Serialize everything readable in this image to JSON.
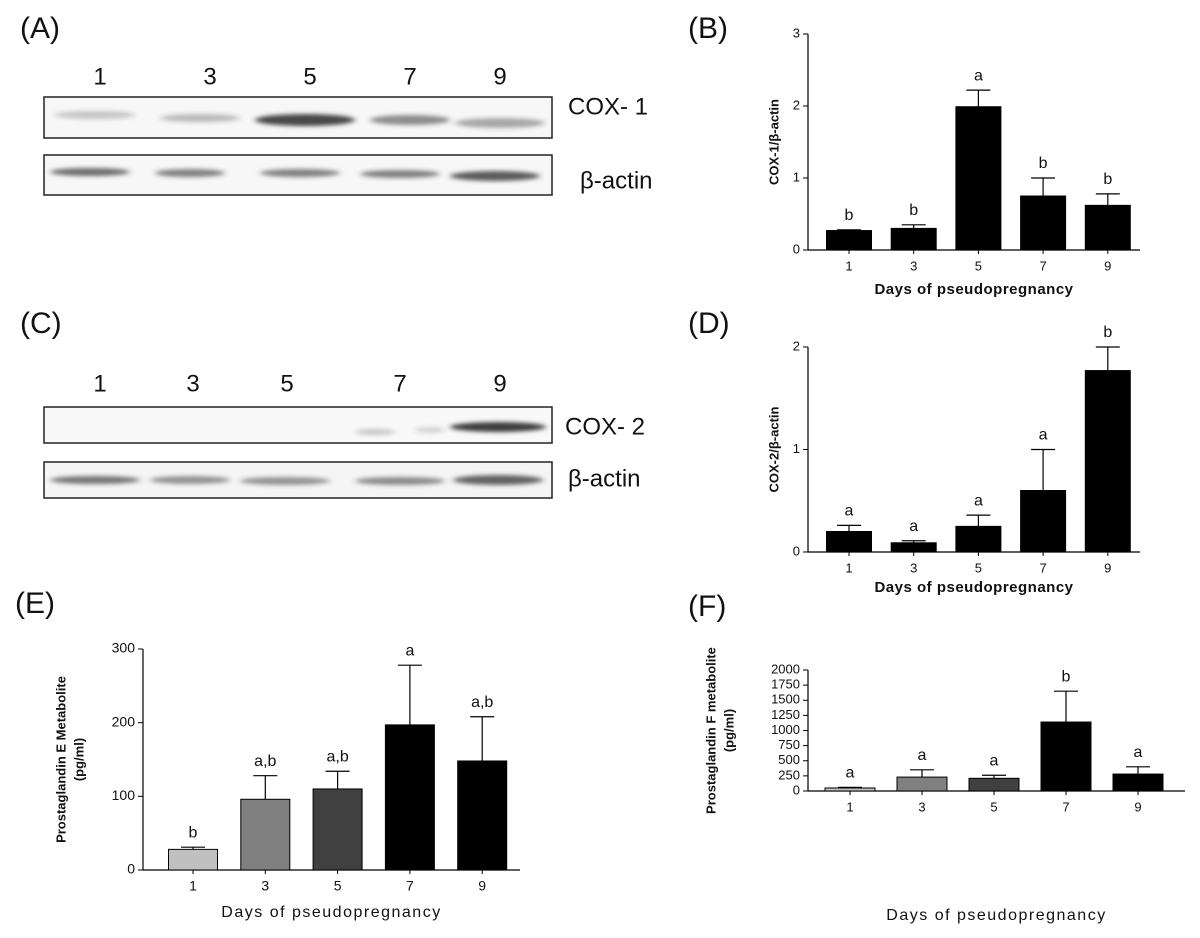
{
  "blots": [
    {
      "panel": "(A)",
      "lanes": [
        "1",
        "3",
        "5",
        "7",
        "9"
      ],
      "rows": [
        "COX- 1",
        "β-actin"
      ]
    },
    {
      "panel": "(C)",
      "lanes": [
        "1",
        "3",
        "5",
        "7",
        "9"
      ],
      "rows": [
        "COX- 2",
        "β-actin"
      ]
    }
  ],
  "chart_data": [
    {
      "type": "bar",
      "panel": "(B)",
      "ylabel": [
        "COX-1/β-actin"
      ],
      "xlabel": "Days of pseudopregnancy",
      "categories": [
        "1",
        "3",
        "5",
        "7",
        "9"
      ],
      "values": [
        0.27,
        0.3,
        1.99,
        0.75,
        0.62
      ],
      "errors": [
        0.01,
        0.05,
        0.23,
        0.25,
        0.16
      ],
      "letters": [
        "b",
        "b",
        "a",
        "b",
        "b"
      ],
      "colors": [
        "#000000",
        "#000000",
        "#000000",
        "#000000",
        "#000000"
      ],
      "ylim": [
        0,
        3
      ],
      "yticks": [
        0,
        1,
        2,
        3
      ]
    },
    {
      "type": "bar",
      "panel": "(D)",
      "ylabel": [
        "COX-2/β-actin"
      ],
      "xlabel": "Days of pseudopregnancy",
      "categories": [
        "1",
        "3",
        "5",
        "7",
        "9"
      ],
      "values": [
        0.2,
        0.09,
        0.25,
        0.6,
        1.77
      ],
      "errors": [
        0.06,
        0.02,
        0.11,
        0.4,
        0.23
      ],
      "letters": [
        "a",
        "a",
        "a",
        "a",
        "b"
      ],
      "colors": [
        "#000000",
        "#000000",
        "#000000",
        "#000000",
        "#000000"
      ],
      "ylim": [
        0,
        2
      ],
      "yticks": [
        0,
        1,
        2
      ]
    },
    {
      "type": "bar",
      "panel": "(E)",
      "ylabel": [
        "Prostaglandin E Metabolite",
        "(pg/ml)"
      ],
      "xlabel": "Days of pseudopregnancy",
      "categories": [
        "1",
        "3",
        "5",
        "7",
        "9"
      ],
      "values": [
        28,
        96,
        110,
        197,
        148
      ],
      "errors": [
        3,
        32,
        24,
        81,
        60
      ],
      "letters": [
        "b",
        "a,b",
        "a,b",
        "a",
        "a,b"
      ],
      "colors": [
        "#c0c0c0",
        "#808080",
        "#404040",
        "#000000",
        "#000000"
      ],
      "ylim": [
        0,
        300
      ],
      "yticks": [
        0,
        100,
        200,
        300
      ]
    },
    {
      "type": "bar",
      "panel": "(F)",
      "ylabel": [
        "Prostaglandin F metabolite",
        "(pg/ml)"
      ],
      "xlabel": "Days of pseudopregnancy",
      "categories": [
        "1",
        "3",
        "5",
        "7",
        "9"
      ],
      "values": [
        50,
        230,
        210,
        1140,
        280
      ],
      "errors": [
        10,
        120,
        50,
        510,
        120
      ],
      "letters": [
        "a",
        "a",
        "a",
        "b",
        "a"
      ],
      "colors": [
        "#c0c0c0",
        "#808080",
        "#404040",
        "#000000",
        "#000000"
      ],
      "ylim": [
        0,
        2000
      ],
      "yticks": [
        0,
        250,
        500,
        750,
        1000,
        1250,
        1500,
        1750,
        2000
      ]
    }
  ]
}
